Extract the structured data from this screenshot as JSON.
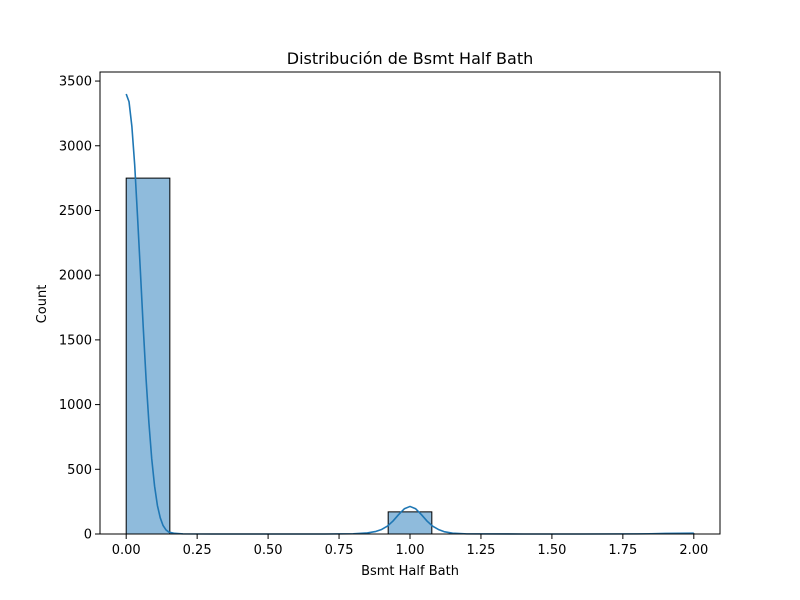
{
  "chart_data": {
    "type": "bar",
    "title": "Distribución de Bsmt Half Bath",
    "xlabel": "Bsmt Half Bath",
    "ylabel": "Count",
    "xlim": [
      -0.0923,
      2.0923
    ],
    "ylim": [
      0,
      3570
    ],
    "x_ticks": [
      0.0,
      0.25,
      0.5,
      0.75,
      1.0,
      1.25,
      1.5,
      1.75,
      2.0
    ],
    "x_tick_labels": [
      "0.00",
      "0.25",
      "0.50",
      "0.75",
      "1.00",
      "1.25",
      "1.50",
      "1.75",
      "2.00"
    ],
    "y_ticks": [
      0,
      500,
      1000,
      1500,
      2000,
      2500,
      3000,
      3500
    ],
    "y_tick_labels": [
      "0",
      "500",
      "1000",
      "1500",
      "2000",
      "2500",
      "3000",
      "3500"
    ],
    "grid": false,
    "bins": [
      {
        "start": 0.0,
        "end": 0.1538,
        "count": 2750
      },
      {
        "start": 0.9231,
        "end": 1.0769,
        "count": 171
      },
      {
        "start": 1.8462,
        "end": 2.0,
        "count": 4
      }
    ],
    "kde": {
      "name": "kde",
      "x": [
        0.0,
        0.01,
        0.02,
        0.03,
        0.04,
        0.05,
        0.06,
        0.07,
        0.08,
        0.09,
        0.1,
        0.11,
        0.12,
        0.13,
        0.14,
        0.15,
        0.17,
        0.2,
        0.3,
        0.5,
        0.7,
        0.8,
        0.85,
        0.88,
        0.9,
        0.92,
        0.94,
        0.96,
        0.98,
        1.0,
        1.02,
        1.04,
        1.06,
        1.08,
        1.1,
        1.12,
        1.15,
        1.2,
        1.4,
        1.6,
        1.8,
        1.85,
        1.9,
        1.95,
        2.0
      ],
      "values": [
        3400,
        3340,
        3150,
        2850,
        2450,
        2030,
        1600,
        1200,
        860,
        580,
        370,
        220,
        125,
        65,
        32,
        15,
        5,
        1,
        0,
        0,
        0,
        2,
        8,
        20,
        35,
        60,
        100,
        150,
        195,
        213,
        195,
        150,
        100,
        60,
        35,
        18,
        6,
        1,
        0,
        0,
        1,
        2,
        4,
        5,
        6
      ],
      "color": "#1f77b4"
    },
    "bar_fill": "#8fbbdc",
    "bar_edge": "#000000"
  }
}
